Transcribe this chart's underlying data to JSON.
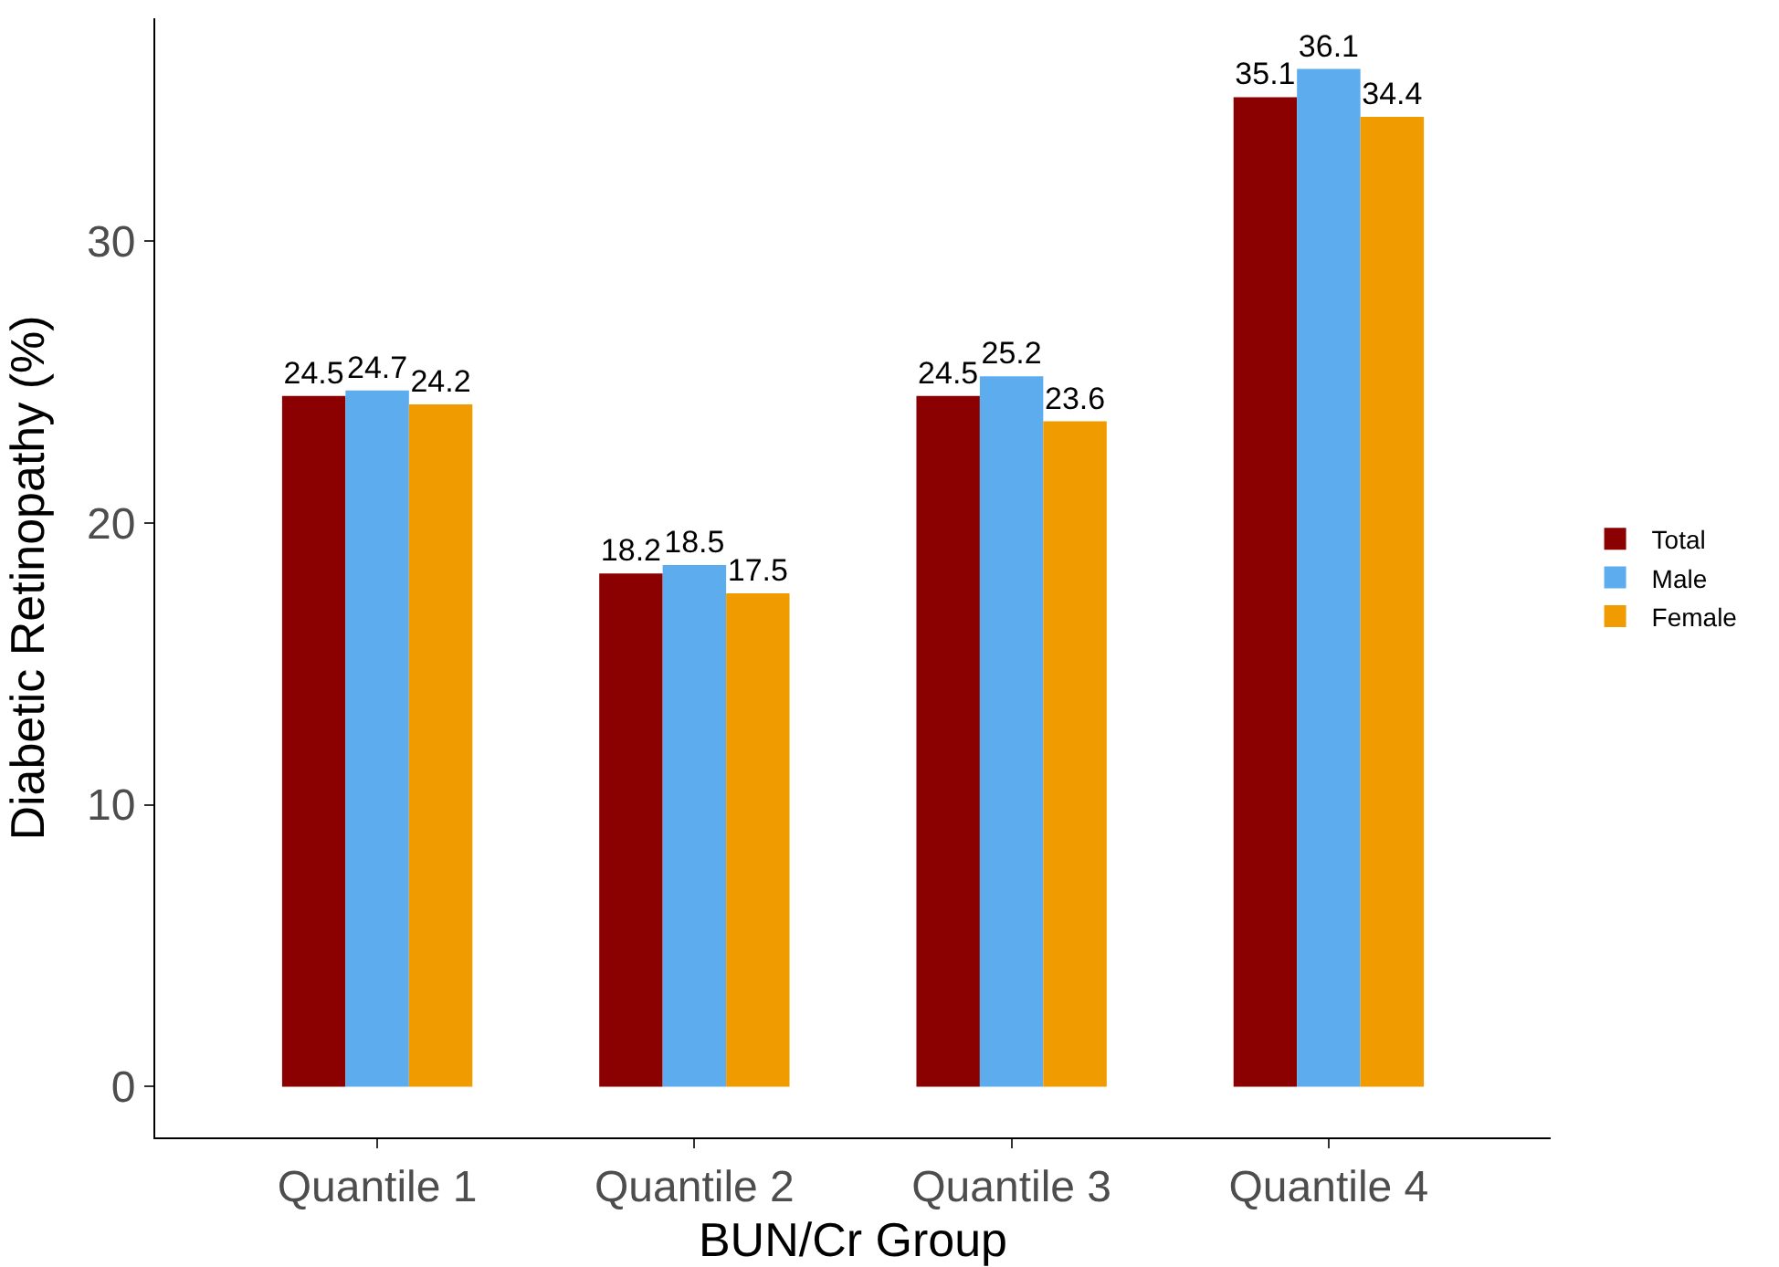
{
  "chart_data": {
    "type": "bar",
    "xlabel": "BUN/Cr Group",
    "ylabel": "Diabetic Retinopathy (%)",
    "categories": [
      "Quantile 1",
      "Quantile 2",
      "Quantile 3",
      "Quantile 4"
    ],
    "series": [
      {
        "name": "Total",
        "color": "#8b0000",
        "values": [
          24.5,
          18.2,
          24.5,
          35.1
        ]
      },
      {
        "name": "Male",
        "color": "#5dadee",
        "values": [
          24.7,
          18.5,
          25.2,
          36.1
        ]
      },
      {
        "name": "Female",
        "color": "#f09c00",
        "values": [
          24.2,
          17.5,
          23.6,
          34.4
        ]
      }
    ],
    "ylim": [
      -1.8,
      37.9
    ],
    "yticks": [
      0,
      10,
      20,
      30
    ],
    "data_labels": true,
    "legend": "right"
  }
}
